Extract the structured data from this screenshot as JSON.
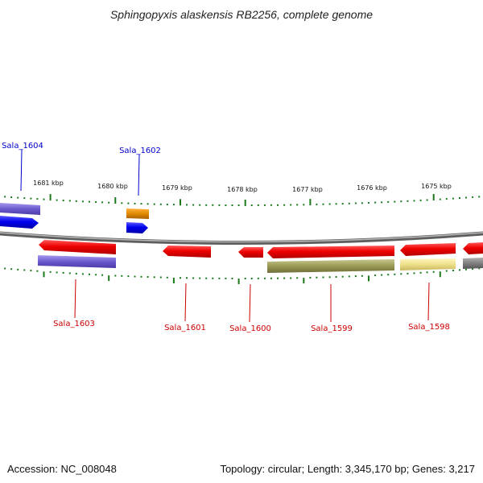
{
  "title": "Sphingopyxis alaskensis RB2256, complete genome",
  "footer": {
    "accession": "Accession: NC_008048",
    "summary": "Topology: circular; Length: 3,345,170 bp; Genes: 3,217"
  },
  "scale_labels": [
    "1681 kbp",
    "1680 kbp",
    "1679 kbp",
    "1678 kbp",
    "1677 kbp",
    "1676 kbp",
    "1675 kbp"
  ],
  "gene_labels": {
    "top": [
      "Sala_1604",
      "Sala_1602"
    ],
    "bottom": [
      "Sala_1603",
      "Sala_1601",
      "Sala_1600",
      "Sala_1599",
      "Sala_1598"
    ]
  },
  "colors": {
    "forward_label": "#0000cc",
    "reverse_label": "#cc0000",
    "cds_red": "#ee0000",
    "cds_blue": "#0000ee",
    "cog_purple": "#6a5acd",
    "cog_orange": "#e08a00",
    "cog_olive": "#9a9a55",
    "cog_yellow": "#eee08a",
    "tick_green": "#1a7a1a",
    "backbone": "#888888"
  }
}
